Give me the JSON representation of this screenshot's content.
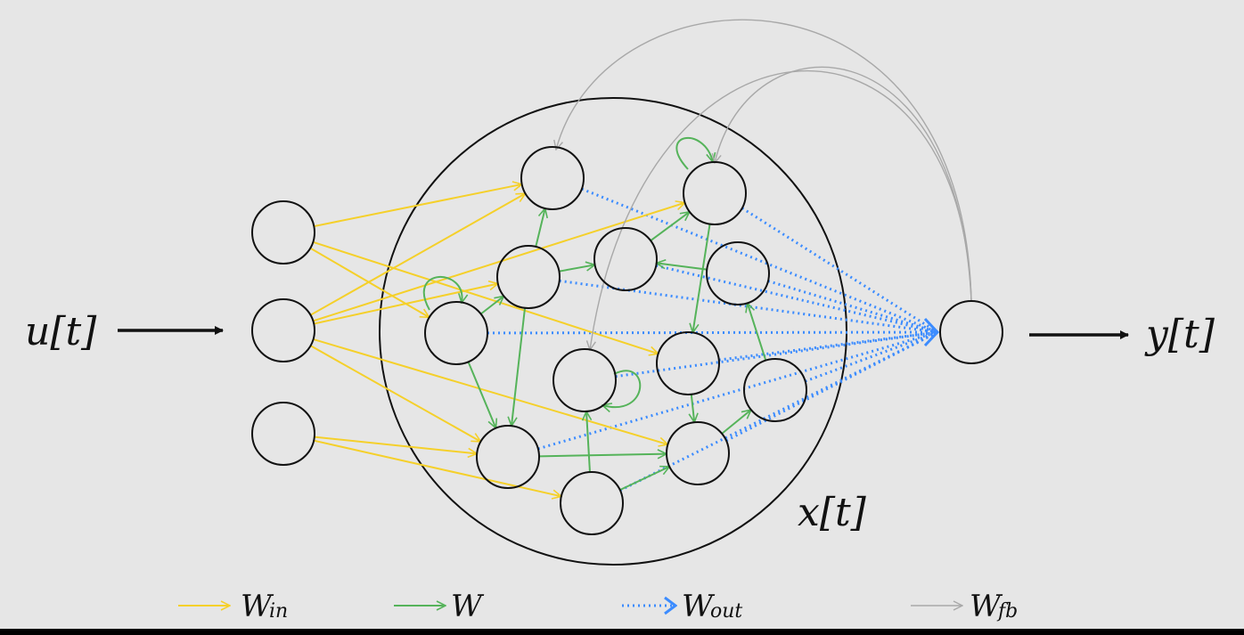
{
  "labels": {
    "input": "u[t]",
    "output": "y[t]",
    "state": "x[t]"
  },
  "legend": [
    {
      "main": "W",
      "sub": "in",
      "color": "#f5d02a",
      "style": "solid"
    },
    {
      "main": "W",
      "sub": "",
      "color": "#55b35a",
      "style": "solid"
    },
    {
      "main": "W",
      "sub": "out",
      "color": "#3c8cff",
      "style": "dotted"
    },
    {
      "main": "W",
      "sub": "fb",
      "color": "#a8a8a8",
      "style": "solid"
    }
  ],
  "colors": {
    "background": "#e6e6e6",
    "input_weights": "#f5d02a",
    "reservoir_weights": "#55b35a",
    "output_weights": "#3c8cff",
    "feedback_weights": "#a8a8a8",
    "node_stroke": "#111111"
  }
}
